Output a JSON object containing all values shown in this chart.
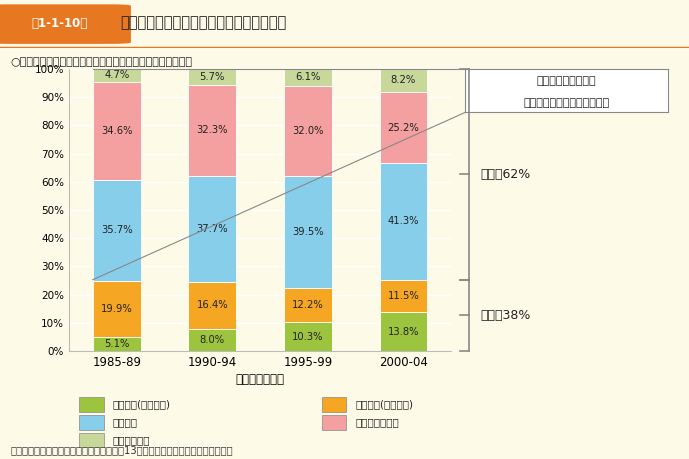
{
  "categories": [
    "1985-89",
    "1990-94",
    "1995-99",
    "2000-04"
  ],
  "segments_order": [
    "就業継続(育休利用)",
    "就業継続(育休なし)",
    "出産退職",
    "妊娠前から無職",
    "その他・不詳"
  ],
  "segments": {
    "就業継続(育休利用)": [
      5.1,
      8.0,
      10.3,
      13.8
    ],
    "就業継続(育休なし)": [
      19.9,
      16.4,
      12.2,
      11.5
    ],
    "出産退職": [
      35.7,
      37.7,
      39.5,
      41.3
    ],
    "妊娠前から無職": [
      34.6,
      32.3,
      32.0,
      25.2
    ],
    "その他・不詳": [
      4.7,
      5.7,
      6.1,
      8.2
    ]
  },
  "colors": {
    "就業継続(育休利用)": "#9dc43f",
    "就業継続(育休なし)": "#f5a623",
    "出産退職": "#87ceeb",
    "妊娠前から無職": "#f4a0a0",
    "その他・不詳": "#c8d89a"
  },
  "subtitle": "○子どもの出生年別、第１子出産前後の妻の就業経歴の構成",
  "xlabel": "子どもの出生年",
  "source": "資料：国立社会保障・人口問題研究所「第13回出生動向基本調査（夫婦調査）」",
  "ann_box_line1": "出産前有職者に係る",
  "ann_box_line2": "第一子出産前後での就業状況",
  "label_mushoku": "無職　62%",
  "label_yushoku": "有職　38%",
  "fig_num": "第1-1-10図",
  "fig_title": "就業と結婚・出産・子育ての「二者択一」",
  "bg_color": "#fdfbe8",
  "header_bg": "#f8f8f8",
  "orange": "#e87722",
  "mushoku_boundary": 25.3,
  "legend_items_col1": [
    "就業継続(育休利用)",
    "出産退職",
    "その他・不詳"
  ],
  "legend_items_col2": [
    "就業継続(育休なし)",
    "妊娠前から無職"
  ]
}
